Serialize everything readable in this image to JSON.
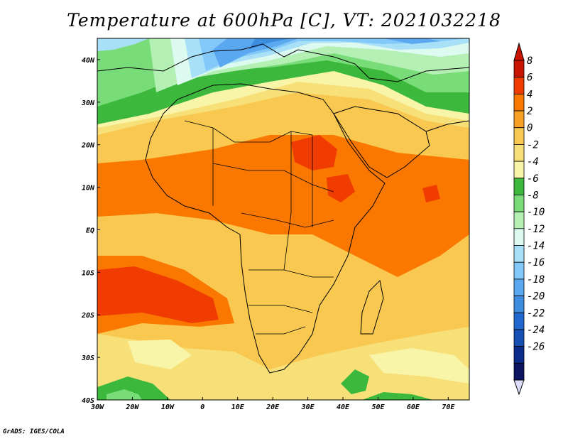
{
  "title": "Temperature at 600hPa [C], VT: 2021032218",
  "footer": "GrADS: IGES/COLA",
  "map": {
    "lon_range": [
      -30,
      76
    ],
    "lat_range": [
      -40,
      45
    ],
    "lon_ticks": [
      {
        "value": -30,
        "label": "30W"
      },
      {
        "value": -20,
        "label": "20W"
      },
      {
        "value": -10,
        "label": "10W"
      },
      {
        "value": 0,
        "label": "0"
      },
      {
        "value": 10,
        "label": "10E"
      },
      {
        "value": 20,
        "label": "20E"
      },
      {
        "value": 30,
        "label": "30E"
      },
      {
        "value": 40,
        "label": "40E"
      },
      {
        "value": 50,
        "label": "50E"
      },
      {
        "value": 60,
        "label": "60E"
      },
      {
        "value": 70,
        "label": "70E"
      }
    ],
    "lat_ticks": [
      {
        "value": 40,
        "label": "40N"
      },
      {
        "value": 30,
        "label": "30N"
      },
      {
        "value": 20,
        "label": "20N"
      },
      {
        "value": 10,
        "label": "10N"
      },
      {
        "value": 0,
        "label": "EQ"
      },
      {
        "value": -10,
        "label": "10S"
      },
      {
        "value": -20,
        "label": "20S"
      },
      {
        "value": -30,
        "label": "30S"
      },
      {
        "value": -40,
        "label": "40S"
      }
    ]
  },
  "colorbar": {
    "levels": [
      "8",
      "6",
      "4",
      "2",
      "0",
      "-2",
      "-4",
      "-6",
      "-8",
      "-10",
      "-12",
      "-14",
      "-16",
      "-18",
      "-20",
      "-22",
      "-24",
      "-26"
    ],
    "colors": [
      "#c81400",
      "#f03c00",
      "#fa7800",
      "#f8a024",
      "#f8c850",
      "#f8e078",
      "#f8f4a8",
      "#3cb83c",
      "#78dc78",
      "#b4f0b4",
      "#dcfaf0",
      "#a8e0f8",
      "#82c8f8",
      "#5aa8f0",
      "#3c8ce0",
      "#2068d0",
      "#1450b4",
      "#0c2c8c",
      "#0a1460"
    ],
    "top_color": "#c81400",
    "bottom_color": "#dcdcfa"
  }
}
